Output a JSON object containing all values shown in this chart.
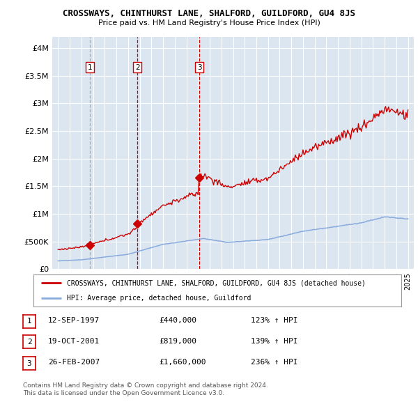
{
  "title": "CROSSWAYS, CHINTHURST LANE, SHALFORD, GUILDFORD, GU4 8JS",
  "subtitle": "Price paid vs. HM Land Registry's House Price Index (HPI)",
  "legend_house": "CROSSWAYS, CHINTHURST LANE, SHALFORD, GUILDFORD, GU4 8JS (detached house)",
  "legend_hpi": "HPI: Average price, detached house, Guildford",
  "table_rows": [
    {
      "num": "1",
      "date": "12-SEP-1997",
      "price": "£440,000",
      "hpi": "123% ↑ HPI"
    },
    {
      "num": "2",
      "date": "19-OCT-2001",
      "price": "£819,000",
      "hpi": "139% ↑ HPI"
    },
    {
      "num": "3",
      "date": "26-FEB-2007",
      "price": "£1,660,000",
      "hpi": "236% ↑ HPI"
    }
  ],
  "footnote1": "Contains HM Land Registry data © Crown copyright and database right 2024.",
  "footnote2": "This data is licensed under the Open Government Licence v3.0.",
  "house_color": "#cc0000",
  "hpi_color": "#88aadd",
  "background_chart": "#dce6f1",
  "grid_color": "#ffffff",
  "vline_color_gray": "#aaaaaa",
  "vline_color_red": "#cc0000",
  "ylim": [
    0,
    4200000
  ],
  "yticks": [
    0,
    500000,
    1000000,
    1500000,
    2000000,
    2500000,
    3000000,
    3500000,
    4000000
  ],
  "ytick_labels": [
    "£0",
    "£500K",
    "£1M",
    "£1.5M",
    "£2M",
    "£2.5M",
    "£3M",
    "£3.5M",
    "£4M"
  ],
  "trans_years": [
    1997.708,
    2001.792,
    2007.125
  ],
  "trans_prices": [
    440000,
    819000,
    1660000
  ],
  "trans_labels": [
    "1",
    "2",
    "3"
  ],
  "vline_styles": [
    "gray",
    "red",
    "red"
  ]
}
